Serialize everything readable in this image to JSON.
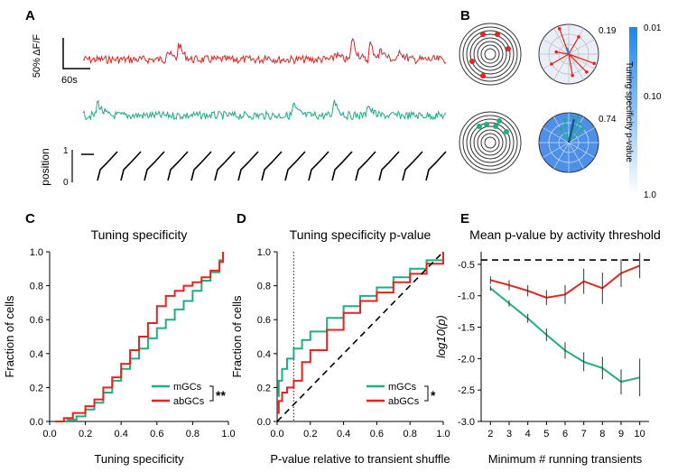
{
  "panel_labels": {
    "a": "A",
    "b": "B",
    "c": "C",
    "d": "D",
    "e": "E"
  },
  "panel_a": {
    "scale_label": "50% ΔF/F",
    "time_label": "60s",
    "position_label": "position",
    "pos_tick_top": "1",
    "pos_tick_bottom": "0",
    "colors": {
      "mgc": "#1fae84",
      "abgc": "#e8221c",
      "transient": "#2b7fd8",
      "gray": "#888888"
    }
  },
  "panel_b": {
    "value_top": "0.19",
    "value_bottom": "0.74",
    "colorbar_label": "Tuning specificity p-value",
    "colorbar_ticks": [
      "0.01",
      "0.10",
      "1.0"
    ],
    "colorbar_colors": {
      "low": "#1a86f0",
      "high": "#ffffff"
    }
  },
  "chart_data": [
    {
      "type": "line",
      "title": "Tuning specificity",
      "xlabel": "Tuning specificity",
      "ylabel": "Fraction of cells",
      "xlim": [
        0.0,
        1.0
      ],
      "ylim": [
        0.0,
        1.0
      ],
      "xticks": [
        "0.0",
        "0.2",
        "0.4",
        "0.6",
        "0.8",
        "1.0"
      ],
      "yticks": [
        "0.0",
        "0.2",
        "0.4",
        "0.6",
        "0.8",
        "1.0"
      ],
      "series": [
        {
          "name": "mGCs",
          "color": "#1fae84",
          "x": [
            0.05,
            0.1,
            0.15,
            0.2,
            0.25,
            0.3,
            0.35,
            0.4,
            0.45,
            0.5,
            0.55,
            0.6,
            0.65,
            0.7,
            0.75,
            0.8,
            0.85,
            0.9,
            0.95,
            0.97
          ],
          "y": [
            0.0,
            0.01,
            0.03,
            0.07,
            0.11,
            0.17,
            0.24,
            0.31,
            0.37,
            0.43,
            0.49,
            0.55,
            0.6,
            0.66,
            0.71,
            0.77,
            0.83,
            0.88,
            0.95,
            1.0
          ]
        },
        {
          "name": "abGCs",
          "color": "#e8221c",
          "x": [
            0.03,
            0.08,
            0.13,
            0.2,
            0.25,
            0.3,
            0.35,
            0.4,
            0.45,
            0.5,
            0.55,
            0.6,
            0.65,
            0.7,
            0.75,
            0.8,
            0.85,
            0.9,
            0.95,
            0.97
          ],
          "y": [
            0.0,
            0.02,
            0.05,
            0.09,
            0.13,
            0.2,
            0.26,
            0.34,
            0.42,
            0.5,
            0.58,
            0.68,
            0.74,
            0.77,
            0.8,
            0.82,
            0.85,
            0.89,
            0.94,
            1.0
          ]
        }
      ],
      "significance": "**"
    },
    {
      "type": "line",
      "title": "Tuning specificity p-value",
      "xlabel": "P-value relative to transient shuffle",
      "ylabel": "Fraction of cells",
      "xlim": [
        0.0,
        1.0
      ],
      "ylim": [
        0.0,
        1.0
      ],
      "xticks": [
        "0.0",
        "0.2",
        "0.4",
        "0.6",
        "0.8",
        "1.0"
      ],
      "yticks": [
        "0.0",
        "0.2",
        "0.4",
        "0.6",
        "0.8",
        "1.0"
      ],
      "vline_x": 0.1,
      "series": [
        {
          "name": "mGCs",
          "color": "#1fae84",
          "x": [
            0.0,
            0.01,
            0.03,
            0.06,
            0.1,
            0.15,
            0.2,
            0.3,
            0.4,
            0.5,
            0.6,
            0.7,
            0.8,
            0.9,
            1.0
          ],
          "y": [
            0.15,
            0.24,
            0.31,
            0.37,
            0.43,
            0.48,
            0.53,
            0.61,
            0.68,
            0.74,
            0.79,
            0.85,
            0.9,
            0.95,
            1.0
          ]
        },
        {
          "name": "abGCs",
          "color": "#e8221c",
          "x": [
            0.0,
            0.01,
            0.03,
            0.06,
            0.1,
            0.15,
            0.2,
            0.3,
            0.4,
            0.5,
            0.6,
            0.7,
            0.8,
            0.9,
            1.0
          ],
          "y": [
            0.05,
            0.12,
            0.17,
            0.2,
            0.24,
            0.35,
            0.42,
            0.54,
            0.64,
            0.71,
            0.76,
            0.82,
            0.87,
            0.93,
            1.0
          ]
        },
        {
          "name": "",
          "color": "#000000",
          "dashed": true,
          "x": [
            0.0,
            1.0
          ],
          "y": [
            0.0,
            1.0
          ]
        }
      ],
      "significance": "*"
    },
    {
      "type": "line",
      "title": "Mean p-value by activity threshold",
      "xlabel": "Minimum # running transients",
      "ylabel": "log10(p)",
      "xlim": [
        1.5,
        10.5
      ],
      "ylim": [
        -3.0,
        -0.3
      ],
      "xticks": [
        "2",
        "3",
        "4",
        "5",
        "6",
        "7",
        "8",
        "9",
        "10"
      ],
      "yticks": [
        "-0.5",
        "-1.0",
        "-1.5",
        "-2.0",
        "-2.5",
        "-3.0"
      ],
      "hline_y": -0.43,
      "series": [
        {
          "name": "abGCs",
          "color": "#e8221c",
          "x": [
            2,
            3,
            4,
            5,
            6,
            7,
            8,
            9,
            10
          ],
          "y": [
            -0.75,
            -0.83,
            -0.92,
            -1.03,
            -0.98,
            -0.77,
            -0.88,
            -0.64,
            -0.52
          ],
          "err": [
            0.06,
            0.08,
            0.09,
            0.12,
            0.15,
            0.2,
            0.25,
            0.22,
            0.2
          ]
        },
        {
          "name": "mGCs",
          "color": "#1fae84",
          "x": [
            2,
            3,
            4,
            5,
            6,
            7,
            8,
            9,
            10
          ],
          "y": [
            -0.88,
            -1.12,
            -1.36,
            -1.62,
            -1.87,
            -2.05,
            -2.15,
            -2.37,
            -2.3
          ],
          "err": [
            0.04,
            0.05,
            0.07,
            0.1,
            0.13,
            0.15,
            0.18,
            0.2,
            0.3
          ]
        }
      ]
    }
  ]
}
